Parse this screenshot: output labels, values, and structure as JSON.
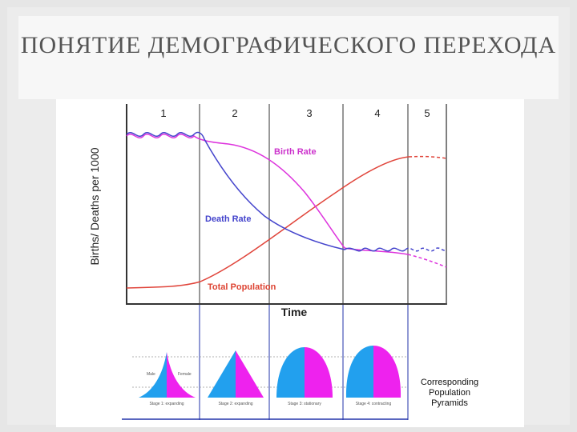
{
  "title": "ПОНЯТИЕ ДЕМОГРАФИЧЕСКОГО ПЕРЕХОДА",
  "chart_data": {
    "type": "line",
    "stages": [
      "1",
      "2",
      "3",
      "4",
      "5"
    ],
    "xlabel": "Time",
    "ylabel": "Births/ Deaths per 1000",
    "series": [
      {
        "name": "Birth Rate",
        "color": "#dd33dd"
      },
      {
        "name": "Death Rate",
        "color": "#4444cc"
      },
      {
        "name": "Total Population",
        "color": "#e0443a"
      }
    ],
    "pyramids": {
      "caption": "Corresponding Population Pyramids",
      "male_label": "Male",
      "female_label": "Female",
      "male_color": "#22a0ee",
      "female_color": "#ee22ee",
      "stage_labels": [
        "Stage 1: expanding",
        "Stage 2: expanding",
        "Stage 3: stationary",
        "Stage 4: contracting"
      ]
    }
  }
}
